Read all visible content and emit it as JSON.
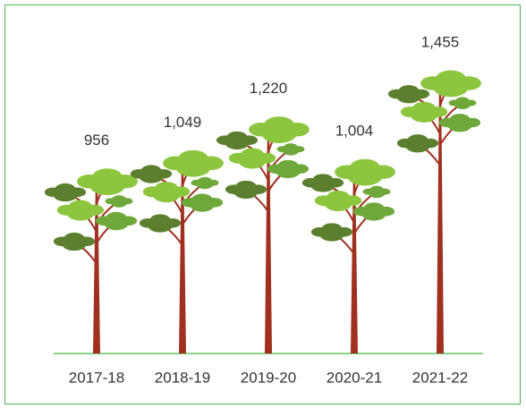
{
  "chart_data": {
    "type": "bar",
    "categories": [
      "2017-18",
      "2018-19",
      "2019-20",
      "2020-21",
      "2021-22"
    ],
    "values": [
      956,
      1049,
      1220,
      1004,
      1455
    ],
    "value_labels": [
      "956",
      "1,049",
      "1,220",
      "1,004",
      "1,455"
    ],
    "color": "#a0301f"
  }
}
